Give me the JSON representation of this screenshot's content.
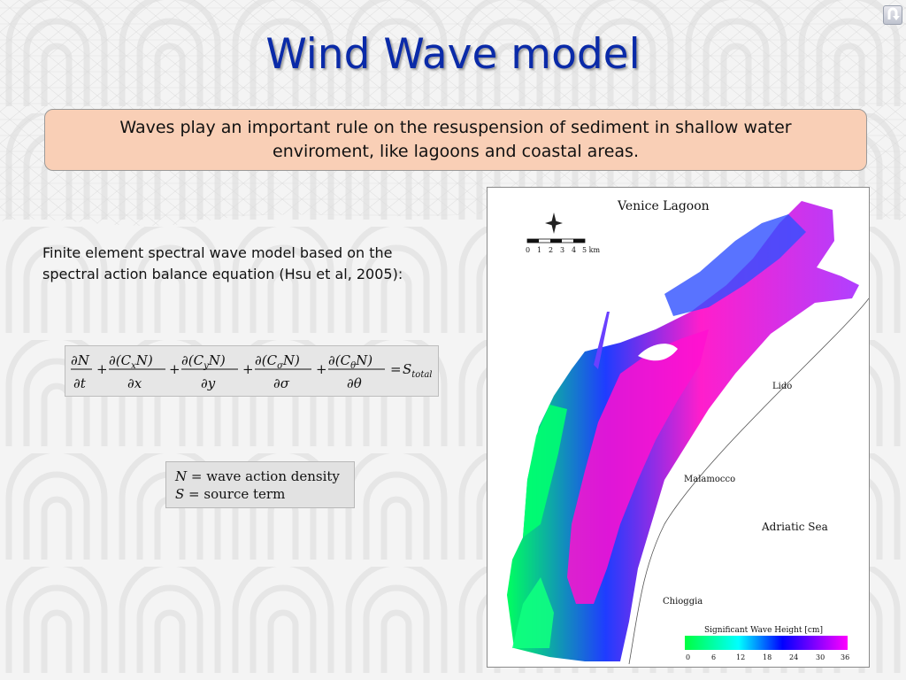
{
  "slide": {
    "title": "Wind Wave model",
    "callout": "Waves play an important rule on the resuspension of sediment in shallow water enviroment, like lagoons and coastal areas.",
    "intro_line1": "Finite element spectral wave model based on the",
    "intro_line2": "spectral action balance equation (Hsu et al, 2005):",
    "equation": {
      "term1_num": "∂N",
      "term1_den": "∂t",
      "term2_num": "∂(C",
      "term2_sub": "x",
      "term2_num_end": "N)",
      "term2_den": "∂x",
      "term3_num": "∂(C",
      "term3_sub": "y",
      "term3_num_end": "N)",
      "term3_den": "∂y",
      "term4_num": "∂(C",
      "term4_sub": "σ",
      "term4_num_end": "N)",
      "term4_den": "∂σ",
      "term5_num": "∂(C",
      "term5_sub": "θ",
      "term5_num_end": "N)",
      "term5_den": "∂θ",
      "plus": "+",
      "equals": "=",
      "rhs": "S",
      "rhs_sub": "total"
    },
    "legend": {
      "line1_symbol": "N",
      "line1_text": " = wave action density",
      "line2_symbol": "S",
      "line2_text": " = source term"
    }
  },
  "map": {
    "title": "Venice Lagoon",
    "scale_numbers": [
      "0",
      "1",
      "2",
      "3",
      "4",
      "5 km"
    ],
    "places": {
      "lido": "Lido",
      "malamocco": "Malamocco",
      "adriatic": "Adriatic Sea",
      "chioggia": "Chioggia"
    },
    "colorbar": {
      "title": "Significant Wave Height [cm]",
      "ticks": [
        "0",
        "6",
        "12",
        "18",
        "24",
        "30",
        "36"
      ],
      "colors": [
        "#00ff40",
        "#00ffff",
        "#0000ff",
        "#ff00ff"
      ]
    }
  },
  "nav": {
    "icon": "return-arrow-icon"
  }
}
